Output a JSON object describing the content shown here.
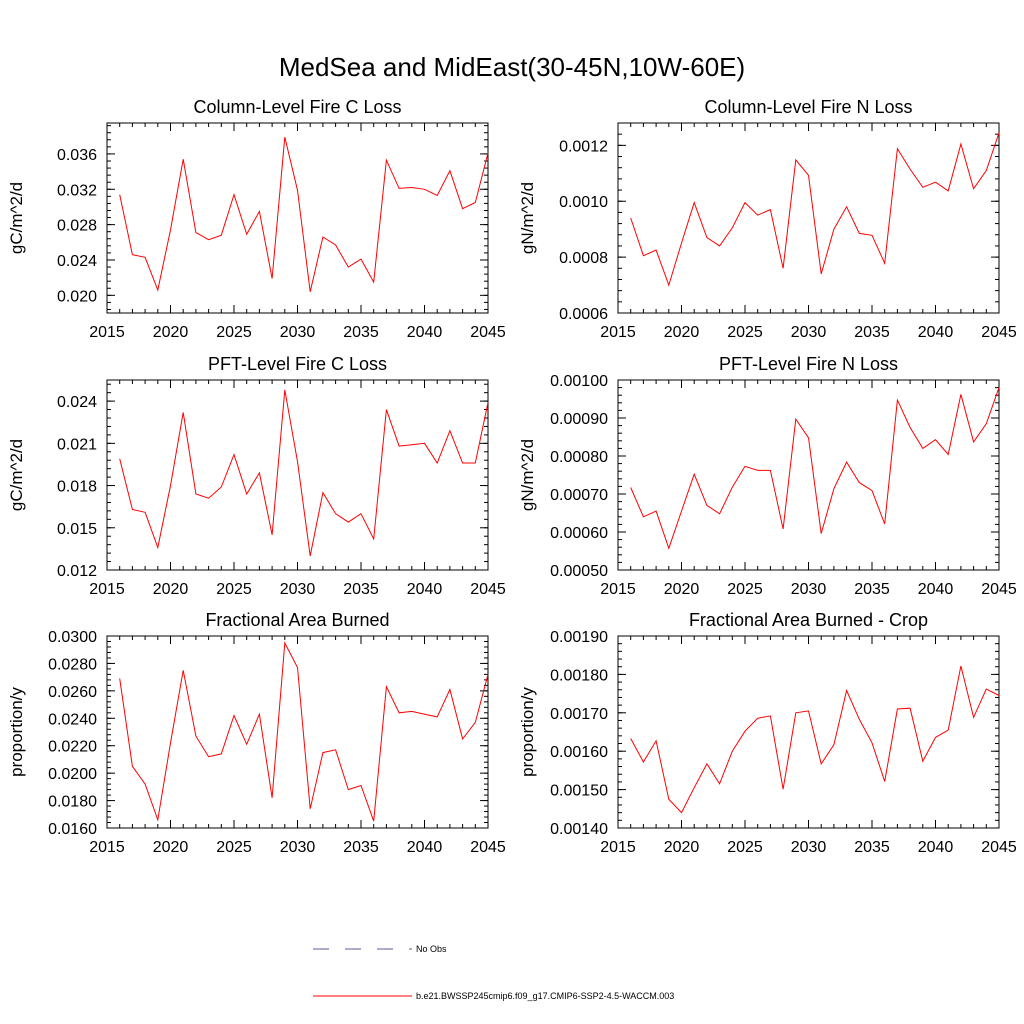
{
  "figure": {
    "title": "MedSea and MidEast(30-45N,10W-60E)",
    "series_color": "#ff0000",
    "obs_color": "#5a5a9a"
  },
  "legend": {
    "obs_label": "No Obs",
    "model_label": "b.e21.BWSSP245cmip6.f09_g17.CMIP6-SSP2-4.5-WACCM.003"
  },
  "chart_data": [
    {
      "type": "line",
      "title": "Column-Level Fire C Loss",
      "ylabel": "gC/m^2/d",
      "xlabel": "",
      "xlim": [
        2015,
        2045
      ],
      "ylim": [
        0.018,
        0.0395
      ],
      "xticks": [
        2015,
        2020,
        2025,
        2030,
        2035,
        2040,
        2045
      ],
      "xtick_labels": [
        "2015",
        "2020",
        "2025",
        "2030",
        "2035",
        "2040",
        "2045"
      ],
      "yticks": [
        0.02,
        0.024,
        0.028,
        0.032,
        0.036
      ],
      "ytick_labels": [
        "0.020",
        "0.024",
        "0.028",
        "0.032",
        "0.036"
      ],
      "series": [
        {
          "name": "b.e21.BWSSP245cmip6.f09_g17.CMIP6-SSP2-4.5-WACCM.003",
          "x": [
            2016,
            2017,
            2018,
            2019,
            2020,
            2021,
            2022,
            2023,
            2024,
            2025,
            2026,
            2027,
            2028,
            2029,
            2030,
            2031,
            2032,
            2033,
            2034,
            2035,
            2036,
            2037,
            2038,
            2039,
            2040,
            2041,
            2042,
            2043,
            2044,
            2045
          ],
          "y": [
            0.0314,
            0.0246,
            0.0243,
            0.0206,
            0.0274,
            0.0354,
            0.0271,
            0.0263,
            0.0268,
            0.0314,
            0.0269,
            0.0295,
            0.0219,
            0.0379,
            0.0319,
            0.0204,
            0.0266,
            0.0257,
            0.0232,
            0.0241,
            0.0215,
            0.0353,
            0.0321,
            0.0322,
            0.032,
            0.0313,
            0.0341,
            0.0298,
            0.0305,
            0.0361
          ]
        }
      ]
    },
    {
      "type": "line",
      "title": "Column-Level Fire N Loss",
      "ylabel": "gN/m^2/d",
      "xlabel": "",
      "xlim": [
        2015,
        2045
      ],
      "ylim": [
        0.0006,
        0.00128
      ],
      "xticks": [
        2015,
        2020,
        2025,
        2030,
        2035,
        2040,
        2045
      ],
      "xtick_labels": [
        "2015",
        "2020",
        "2025",
        "2030",
        "2035",
        "2040",
        "2045"
      ],
      "yticks": [
        0.0006,
        0.0008,
        0.001,
        0.0012
      ],
      "ytick_labels": [
        "0.0006",
        "0.0008",
        "0.0010",
        "0.0012"
      ],
      "series": [
        {
          "name": "b.e21.BWSSP245cmip6.f09_g17.CMIP6-SSP2-4.5-WACCM.003",
          "x": [
            2016,
            2017,
            2018,
            2019,
            2020,
            2021,
            2022,
            2023,
            2024,
            2025,
            2026,
            2027,
            2028,
            2029,
            2030,
            2031,
            2032,
            2033,
            2034,
            2035,
            2036,
            2037,
            2038,
            2039,
            2040,
            2041,
            2042,
            2043,
            2044,
            2045
          ],
          "y": [
            0.00094,
            0.000805,
            0.000825,
            0.0007,
            0.00085,
            0.000995,
            0.00087,
            0.00084,
            0.000905,
            0.000995,
            0.00095,
            0.00097,
            0.00076,
            0.001148,
            0.001093,
            0.00074,
            0.0009,
            0.00098,
            0.000885,
            0.000878,
            0.000778,
            0.001188,
            0.001115,
            0.00105,
            0.001068,
            0.001037,
            0.001205,
            0.001045,
            0.00111,
            0.001245
          ]
        }
      ]
    },
    {
      "type": "line",
      "title": "PFT-Level Fire C Loss",
      "ylabel": "gC/m^2/d",
      "xlabel": "",
      "xlim": [
        2015,
        2045
      ],
      "ylim": [
        0.012,
        0.0255
      ],
      "xticks": [
        2015,
        2020,
        2025,
        2030,
        2035,
        2040,
        2045
      ],
      "xtick_labels": [
        "2015",
        "2020",
        "2025",
        "2030",
        "2035",
        "2040",
        "2045"
      ],
      "yticks": [
        0.012,
        0.015,
        0.018,
        0.021,
        0.024
      ],
      "ytick_labels": [
        "0.012",
        "0.015",
        "0.018",
        "0.021",
        "0.024"
      ],
      "series": [
        {
          "name": "b.e21.BWSSP245cmip6.f09_g17.CMIP6-SSP2-4.5-WACCM.003",
          "x": [
            2016,
            2017,
            2018,
            2019,
            2020,
            2021,
            2022,
            2023,
            2024,
            2025,
            2026,
            2027,
            2028,
            2029,
            2030,
            2031,
            2032,
            2033,
            2034,
            2035,
            2036,
            2037,
            2038,
            2039,
            2040,
            2041,
            2042,
            2043,
            2044,
            2045
          ],
          "y": [
            0.0199,
            0.0163,
            0.0161,
            0.0136,
            0.018,
            0.0232,
            0.0174,
            0.0171,
            0.0179,
            0.0202,
            0.0174,
            0.0189,
            0.0145,
            0.0248,
            0.0197,
            0.013,
            0.0175,
            0.016,
            0.0154,
            0.016,
            0.0142,
            0.0234,
            0.0208,
            0.0209,
            0.021,
            0.0196,
            0.0219,
            0.0196,
            0.0196,
            0.0239
          ]
        }
      ]
    },
    {
      "type": "line",
      "title": "PFT-Level Fire N Loss",
      "ylabel": "gN/m^2/d",
      "xlabel": "",
      "xlim": [
        2015,
        2045
      ],
      "ylim": [
        0.0005,
        0.001
      ],
      "xticks": [
        2015,
        2020,
        2025,
        2030,
        2035,
        2040,
        2045
      ],
      "xtick_labels": [
        "2015",
        "2020",
        "2025",
        "2030",
        "2035",
        "2040",
        "2045"
      ],
      "yticks": [
        0.0005,
        0.0006,
        0.0007,
        0.0008,
        0.0009,
        0.001
      ],
      "ytick_labels": [
        "0.00050",
        "0.00060",
        "0.00070",
        "0.00080",
        "0.00090",
        "0.00100"
      ],
      "series": [
        {
          "name": "b.e21.BWSSP245cmip6.f09_g17.CMIP6-SSP2-4.5-WACCM.003",
          "x": [
            2016,
            2017,
            2018,
            2019,
            2020,
            2021,
            2022,
            2023,
            2024,
            2025,
            2026,
            2027,
            2028,
            2029,
            2030,
            2031,
            2032,
            2033,
            2034,
            2035,
            2036,
            2037,
            2038,
            2039,
            2040,
            2041,
            2042,
            2043,
            2044,
            2045
          ],
          "y": [
            0.000717,
            0.00064,
            0.000655,
            0.000557,
            0.000655,
            0.000752,
            0.00067,
            0.000648,
            0.000718,
            0.000773,
            0.000762,
            0.000762,
            0.000608,
            0.000897,
            0.000848,
            0.000596,
            0.000714,
            0.000784,
            0.00073,
            0.000709,
            0.000621,
            0.000947,
            0.000875,
            0.00082,
            0.000843,
            0.000804,
            0.000962,
            0.000837,
            0.000885,
            0.00098
          ]
        }
      ]
    },
    {
      "type": "line",
      "title": "Fractional Area Burned",
      "ylabel": "proportion/y",
      "xlabel": "",
      "xlim": [
        2015,
        2045
      ],
      "ylim": [
        0.016,
        0.03
      ],
      "xticks": [
        2015,
        2020,
        2025,
        2030,
        2035,
        2040,
        2045
      ],
      "xtick_labels": [
        "2015",
        "2020",
        "2025",
        "2030",
        "2035",
        "2040",
        "2045"
      ],
      "yticks": [
        0.016,
        0.018,
        0.02,
        0.022,
        0.024,
        0.026,
        0.028,
        0.03
      ],
      "ytick_labels": [
        "0.0160",
        "0.0180",
        "0.0200",
        "0.0220",
        "0.0240",
        "0.0260",
        "0.0280",
        "0.0300"
      ],
      "series": [
        {
          "name": "b.e21.BWSSP245cmip6.f09_g17.CMIP6-SSP2-4.5-WACCM.003",
          "x": [
            2016,
            2017,
            2018,
            2019,
            2020,
            2021,
            2022,
            2023,
            2024,
            2025,
            2026,
            2027,
            2028,
            2029,
            2030,
            2031,
            2032,
            2033,
            2034,
            2035,
            2036,
            2037,
            2038,
            2039,
            2040,
            2041,
            2042,
            2043,
            2044,
            2045
          ],
          "y": [
            0.0269,
            0.0205,
            0.0192,
            0.0166,
            0.0222,
            0.0275,
            0.0227,
            0.0212,
            0.0214,
            0.0242,
            0.0221,
            0.0243,
            0.0182,
            0.0295,
            0.0277,
            0.0174,
            0.0215,
            0.0217,
            0.0188,
            0.0191,
            0.0165,
            0.0263,
            0.0244,
            0.0245,
            0.0243,
            0.0241,
            0.0261,
            0.0225,
            0.0237,
            0.0272
          ]
        }
      ]
    },
    {
      "type": "line",
      "title": "Fractional Area Burned - Crop",
      "ylabel": "proportion/y",
      "xlabel": "",
      "xlim": [
        2015,
        2045
      ],
      "ylim": [
        0.0014,
        0.0019
      ],
      "xticks": [
        2015,
        2020,
        2025,
        2030,
        2035,
        2040,
        2045
      ],
      "xtick_labels": [
        "2015",
        "2020",
        "2025",
        "2030",
        "2035",
        "2040",
        "2045"
      ],
      "yticks": [
        0.0014,
        0.0015,
        0.0016,
        0.0017,
        0.0018,
        0.0019
      ],
      "ytick_labels": [
        "0.00140",
        "0.00150",
        "0.00160",
        "0.00170",
        "0.00180",
        "0.00190"
      ],
      "series": [
        {
          "name": "b.e21.BWSSP245cmip6.f09_g17.CMIP6-SSP2-4.5-WACCM.003",
          "x": [
            2016,
            2017,
            2018,
            2019,
            2020,
            2021,
            2022,
            2023,
            2024,
            2025,
            2026,
            2027,
            2028,
            2029,
            2030,
            2031,
            2032,
            2033,
            2034,
            2035,
            2036,
            2037,
            2038,
            2039,
            2040,
            2041,
            2042,
            2043,
            2044,
            2045
          ],
          "y": [
            0.001633,
            0.001572,
            0.001627,
            0.001475,
            0.00144,
            0.001505,
            0.001567,
            0.001515,
            0.0016,
            0.001652,
            0.001686,
            0.001692,
            0.001501,
            0.0017,
            0.001705,
            0.001567,
            0.001617,
            0.001758,
            0.001683,
            0.001622,
            0.001521,
            0.00171,
            0.001712,
            0.001574,
            0.001636,
            0.001655,
            0.001822,
            0.001688,
            0.001762,
            0.001745
          ]
        }
      ]
    }
  ]
}
